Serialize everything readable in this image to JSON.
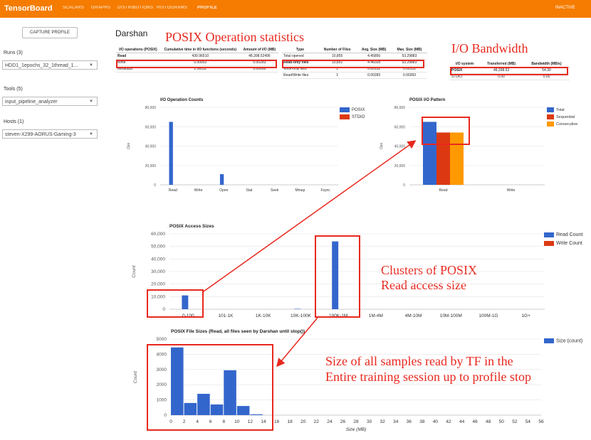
{
  "topbar": {
    "brand": "TensorBoard",
    "tabs": [
      "SCALARS",
      "GRAPHS",
      "DISTRIBUTIONS",
      "HISTOGRAMS",
      "PROFILE"
    ],
    "status": "INACTIVE",
    "color": "#f57c00"
  },
  "sidebar": {
    "capture_button": "CAPTURE PROFILE",
    "runs_label": "Runs (3)",
    "runs_value": "HDD1_1epochs_32_1thread_1...",
    "tools_label": "Tools (5)",
    "tools_value": "input_pipeline_analyzer",
    "hosts_label": "Hosts (1)",
    "hosts_value": "steven-X299-AORUS-Gaming-3"
  },
  "main": {
    "title": "Darshan",
    "annotations": {
      "posix_stats": "POSIX Operation statistics",
      "io_bandwidth": "I/O Bandwidth",
      "clusters_line1": "Clusters of POSIX",
      "clusters_line2": "Read access size",
      "size_line1": "Size of all samples read by TF in the",
      "size_line2": "Entire training session up to profile stop"
    },
    "ops_table": {
      "headers": [
        "I/O operations (POSIX)",
        "Cumulative time in I/O functions (seconds)",
        "Amount of I/O (MB)"
      ],
      "rows": [
        [
          "Read",
          "439.96510",
          "48,398.52496"
        ],
        [
          "Write",
          "0.00002",
          "0.00283"
        ],
        [
          "Metadata",
          "2.96111",
          "0.00000"
        ]
      ]
    },
    "files_table": {
      "headers": [
        "Type",
        "Number of Files",
        "Avg. Size (MB)",
        "Max. Size (MB)"
      ],
      "rows": [
        [
          "Total opened",
          "10,855",
          "4.45856",
          "53.29883"
        ],
        [
          "Read-only files",
          "10,851",
          "4.46028",
          "53.29883"
        ],
        [
          "Write-only files",
          "1",
          "0.00132",
          "0.00132"
        ],
        [
          "Read/Write files",
          "1",
          "0.00283",
          "0.00283"
        ]
      ]
    },
    "bw_table": {
      "headers": [
        "I/O system",
        "Transferred (MB)",
        "Bandwidth (MB/s)"
      ],
      "rows": [
        [
          "POSIX",
          "48,398.53",
          "54.30"
        ],
        [
          "STDIO",
          "0.00",
          "0.00"
        ]
      ]
    }
  },
  "chart_data": [
    {
      "type": "bar",
      "title": "I/O Operation Counts",
      "categories": [
        "Read",
        "Write",
        "Open",
        "Stat",
        "Seek",
        "Mmap",
        "Fsync"
      ],
      "series": [
        {
          "name": "POSIX",
          "values": [
            65000,
            0,
            11000,
            0,
            0,
            0,
            0
          ],
          "color": "#3366cc"
        },
        {
          "name": "STDIO",
          "values": [
            0,
            0,
            0,
            0,
            0,
            0,
            0
          ],
          "color": "#dc3912"
        }
      ],
      "ylabel": "Ops",
      "yticks": [
        "0",
        "20,000",
        "40,000",
        "60,000",
        "80,000"
      ],
      "ylim": [
        0,
        80000
      ]
    },
    {
      "type": "bar",
      "title": "POSIX I/O Pattern",
      "categories": [
        "Read",
        "Write"
      ],
      "series": [
        {
          "name": "Total",
          "values": [
            65000,
            0
          ],
          "color": "#3366cc"
        },
        {
          "name": "Sequential",
          "values": [
            54000,
            0
          ],
          "color": "#dc3912"
        },
        {
          "name": "Consecutive",
          "values": [
            54000,
            0
          ],
          "color": "#ff9900"
        }
      ],
      "ylabel": "Ops",
      "yticks": [
        "0",
        "20,000",
        "40,000",
        "60,000",
        "80,000"
      ],
      "ylim": [
        0,
        80000
      ]
    },
    {
      "type": "bar",
      "title": "POSIX Access Sizes",
      "categories": [
        "0-100",
        "101-1K",
        "1K-10K",
        "10K-100K",
        "100K-1M",
        "1M-4M",
        "4M-10M",
        "10M-100M",
        "100M-1G",
        "1G+"
      ],
      "series": [
        {
          "name": "Read Count",
          "values": [
            11000,
            0,
            0,
            300,
            54000,
            0,
            0,
            0,
            0,
            0
          ],
          "color": "#3366cc"
        },
        {
          "name": "Write Count",
          "values": [
            0,
            0,
            0,
            0,
            0,
            0,
            0,
            0,
            0,
            0
          ],
          "color": "#dc3912"
        }
      ],
      "ylabel": "Count",
      "yticks": [
        "0",
        "10,000",
        "20,000",
        "30,000",
        "40,000",
        "50,000",
        "60,000"
      ],
      "ylim": [
        0,
        60000
      ]
    },
    {
      "type": "bar",
      "title": "POSIX File Sizes (Read, all files seen by Darshan until stop())",
      "x": [
        0,
        2,
        4,
        6,
        8,
        10,
        12,
        14
      ],
      "series": [
        {
          "name": "Size (count)",
          "values": [
            4450,
            800,
            1400,
            700,
            2950,
            600,
            50,
            0
          ],
          "color": "#3366cc"
        }
      ],
      "xlabel": "Size (MB)",
      "ylabel": "Count",
      "xticks": [
        "0",
        "2",
        "4",
        "6",
        "8",
        "10",
        "12",
        "14",
        "16",
        "18",
        "20",
        "22",
        "24",
        "26",
        "28",
        "30",
        "32",
        "34",
        "36",
        "38",
        "40",
        "42",
        "44",
        "46",
        "48",
        "50",
        "52",
        "54",
        "56"
      ],
      "yticks": [
        "0",
        "1000",
        "2000",
        "3000",
        "4000",
        "5000"
      ],
      "ylim": [
        0,
        5000
      ],
      "xlim": [
        0,
        56
      ]
    }
  ]
}
